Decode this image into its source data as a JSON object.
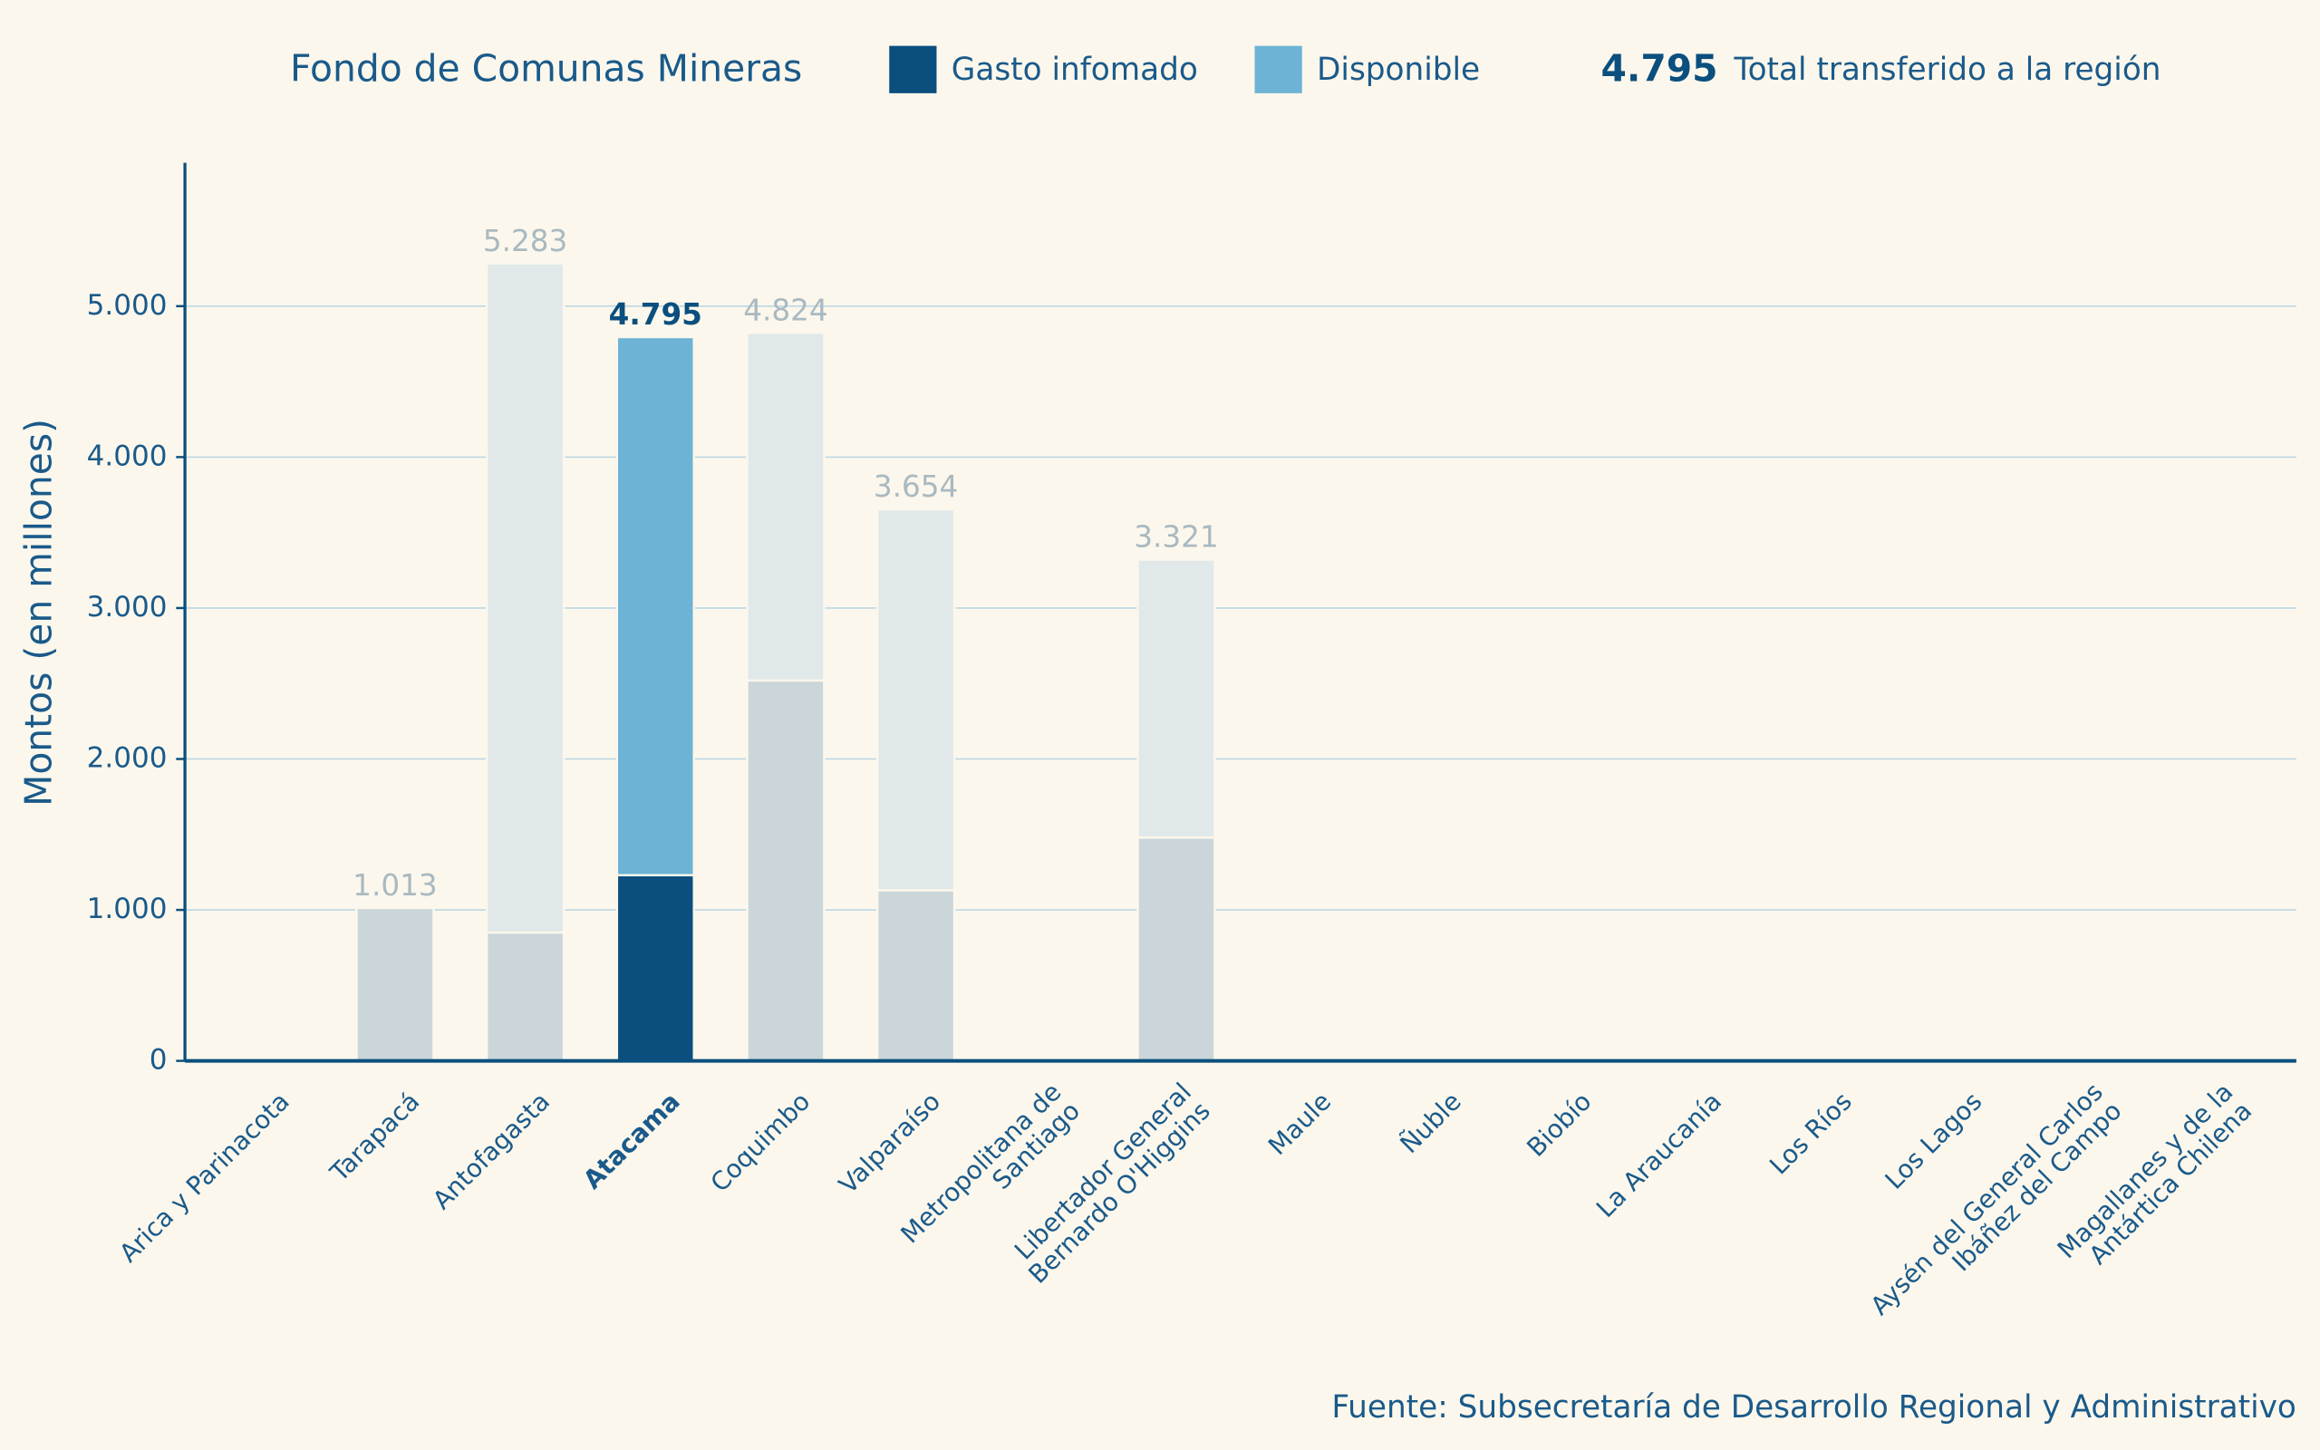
{
  "chart_data": {
    "type": "stacked-bar",
    "title": "Fondo de Comunas Mineras",
    "legend_total": {
      "value": 4795,
      "label": "4.795"
    },
    "legend_total_text": "Total transferido a la región",
    "ylabel": "Montos (en millones)",
    "source": "Fuente: Subsecretaría de Desarrollo Regional y Administrativo",
    "highlight": "Atacama",
    "categories": [
      "Arica y Parinacota",
      "Tarapacá",
      "Antofagasta",
      "Atacama",
      "Coquimbo",
      "Valparaíso",
      "Metropolitana de\nSantiago",
      "Libertador General\nBernardo O'Higgins",
      "Maule",
      "Ñuble",
      "Biobío",
      "La Araucanía",
      "Los Ríos",
      "Los Lagos",
      "Aysén del General Carlos\nIbáñez del Campo",
      "Magallanes y de la\nAntártica Chilena"
    ],
    "series": [
      {
        "name": "Gasto infomado",
        "color": "#0a4f7e",
        "faded_color": "#cad6d9",
        "values": [
          null,
          1013,
          850,
          1230,
          2520,
          1130,
          null,
          1480,
          null,
          null,
          null,
          null,
          null,
          null,
          null,
          null
        ]
      },
      {
        "name": "Disponible",
        "color": "#6cb3d5",
        "faded_color": "#e0e8e9",
        "values": [
          null,
          0,
          4433,
          3565,
          2304,
          2524,
          null,
          1841,
          null,
          null,
          null,
          null,
          null,
          null,
          null,
          null
        ]
      }
    ],
    "totals": {
      "values": [
        null,
        1013,
        5283,
        4795,
        4824,
        3654,
        null,
        3321,
        null,
        null,
        null,
        null,
        null,
        null,
        null,
        null
      ],
      "value_labels": [
        null,
        "1.013",
        "5.283",
        "4.795",
        "4.824",
        "3.654",
        null,
        "3.321",
        null,
        null,
        null,
        null,
        null,
        null,
        null,
        null
      ]
    },
    "ylim": [
      0,
      5950
    ],
    "yticks": [
      0,
      {
        "value": 1000,
        "label": "1.000"
      },
      {
        "value": 2000,
        "label": "2.000"
      },
      {
        "value": 3000,
        "label": "3.000"
      },
      {
        "value": 4000,
        "label": "4.000"
      },
      {
        "value": 5000,
        "label": "5.000"
      }
    ],
    "grid": true
  }
}
